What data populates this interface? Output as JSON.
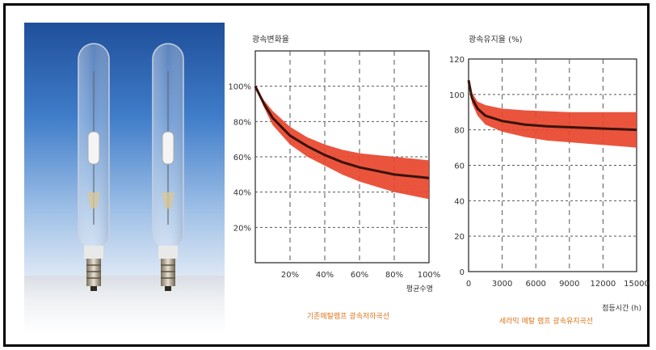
{
  "chart_data": [
    {
      "type": "line",
      "title": "광속변화율",
      "xlabel": "평균수명",
      "ylabel": "",
      "caption": "기존메탈램프 광속저하곡선",
      "x_ticks": [
        "20%",
        "40%",
        "60%",
        "80%",
        "100%"
      ],
      "y_ticks": [
        "20%",
        "40%",
        "60%",
        "80%",
        "100%"
      ],
      "xlim": [
        0,
        100
      ],
      "ylim": [
        0,
        120
      ],
      "grid": true,
      "band_color": "#e8452c",
      "line_color": "#3a1208",
      "series": [
        {
          "x": [
            0,
            5,
            10,
            20,
            30,
            40,
            50,
            60,
            70,
            80,
            90,
            100
          ],
          "values": [
            100,
            90,
            82,
            72,
            66,
            61,
            57,
            54,
            52,
            50,
            49,
            48
          ],
          "upper": [
            100,
            92,
            86,
            77,
            71,
            67,
            64,
            62,
            61,
            60,
            59,
            58
          ],
          "lower": [
            100,
            88,
            78,
            67,
            60,
            55,
            50,
            46,
            43,
            40,
            38,
            36
          ]
        }
      ]
    },
    {
      "type": "line",
      "title": "광속유지율 (%)",
      "xlabel": "점등시간 (h)",
      "ylabel": "",
      "caption": "세라믹 메탈 램프 광속유지곡선",
      "x_ticks": [
        "0",
        "3000",
        "6000",
        "9000",
        "12000",
        "15000"
      ],
      "y_ticks": [
        "0",
        "20",
        "40",
        "60",
        "80",
        "100",
        "120"
      ],
      "xlim": [
        0,
        15000
      ],
      "ylim": [
        0,
        120
      ],
      "grid": true,
      "band_color": "#e8452c",
      "line_color": "#3a1208",
      "series": [
        {
          "x": [
            0,
            300,
            800,
            1500,
            3000,
            5000,
            7000,
            9000,
            11000,
            13000,
            15000
          ],
          "values": [
            108,
            98,
            92,
            88,
            85,
            83,
            82,
            81.5,
            81,
            80.5,
            80
          ],
          "upper": [
            108,
            101,
            96,
            94,
            92,
            91,
            90.5,
            90,
            90,
            90,
            90
          ],
          "lower": [
            108,
            95,
            88,
            83,
            79,
            76,
            74,
            73,
            72,
            71,
            70
          ]
        }
      ]
    }
  ]
}
